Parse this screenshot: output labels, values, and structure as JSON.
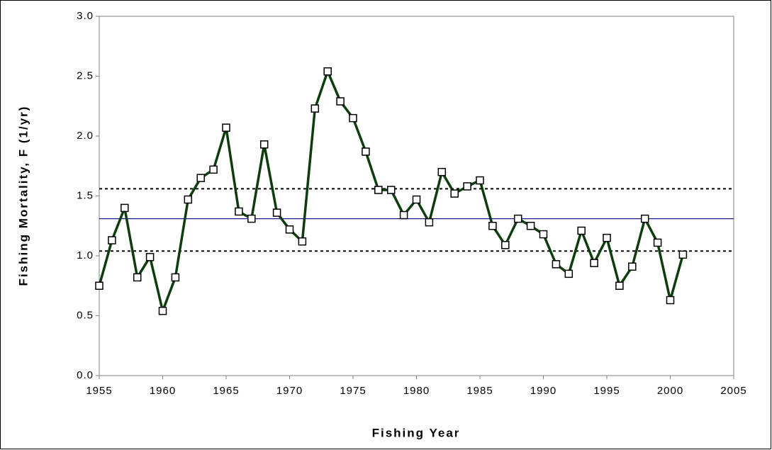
{
  "chart_data": {
    "type": "line",
    "x_label": "Fishing Year",
    "y_label": "Fishing Mortality, F (1/yr)",
    "x": [
      1955,
      1956,
      1957,
      1958,
      1959,
      1960,
      1961,
      1962,
      1963,
      1964,
      1965,
      1966,
      1967,
      1968,
      1969,
      1970,
      1971,
      1972,
      1973,
      1974,
      1975,
      1976,
      1977,
      1978,
      1979,
      1980,
      1981,
      1982,
      1983,
      1984,
      1985,
      1986,
      1987,
      1988,
      1989,
      1990,
      1991,
      1992,
      1993,
      1994,
      1995,
      1996,
      1997,
      1998,
      1999,
      2000,
      2001
    ],
    "series": [
      {
        "color": "#0d3d0d",
        "marker_color": "#000000",
        "values": [
          0.75,
          1.13,
          1.4,
          0.82,
          0.99,
          0.54,
          0.82,
          1.47,
          1.65,
          1.72,
          2.07,
          1.37,
          1.31,
          1.93,
          1.36,
          1.22,
          1.12,
          2.23,
          2.54,
          2.29,
          2.15,
          1.87,
          1.55,
          1.55,
          1.34,
          1.47,
          1.28,
          1.7,
          1.52,
          1.58,
          1.63,
          1.25,
          1.09,
          1.31,
          1.25,
          1.18,
          0.93,
          0.85,
          1.21,
          0.94,
          1.15,
          0.75,
          0.91,
          1.31,
          1.11,
          0.63,
          1.01
        ]
      }
    ],
    "reference_lines": [
      {
        "value": 1.31,
        "color": "#1a1a99",
        "dashed": false
      },
      {
        "value": 1.56,
        "color": "#000000",
        "dashed": true
      },
      {
        "value": 1.04,
        "color": "#000000",
        "dashed": true
      }
    ],
    "xlim": [
      1955,
      2005
    ],
    "xticks": [
      1955,
      1960,
      1965,
      1970,
      1975,
      1980,
      1985,
      1990,
      1995,
      2000,
      2005
    ],
    "ylim": [
      0,
      3
    ],
    "yticks": [
      {
        "value": 0,
        "label": "0.0"
      },
      0.5,
      {
        "value": 1,
        "label": "1.0"
      },
      1.5,
      {
        "value": 2,
        "label": "2.0"
      },
      2.5,
      {
        "value": 3,
        "label": "3.0"
      }
    ]
  }
}
